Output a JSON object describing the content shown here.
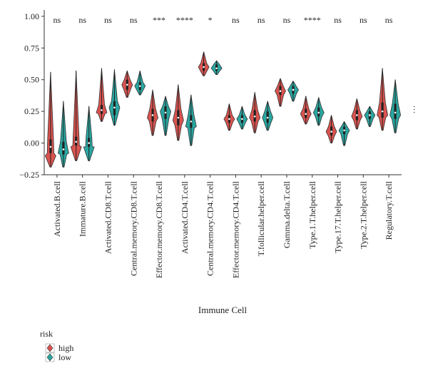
{
  "chart_data": {
    "type": "violin",
    "title": "",
    "xlabel": "Immune Cell",
    "ylabel": "",
    "ylim": [
      -0.25,
      1.05
    ],
    "yticks": [
      -0.25,
      0.0,
      0.25,
      0.5,
      0.75,
      1.0
    ],
    "ytick_labels": [
      "−0.25",
      "0.00",
      "0.25",
      "0.50",
      "0.75",
      "1.00"
    ],
    "grid": false,
    "legend": {
      "title": "risk",
      "placement": "bottom-left",
      "entries": [
        {
          "name": "high",
          "color": "#d9534f"
        },
        {
          "name": "low",
          "color": "#2aa6a0"
        }
      ]
    },
    "categories": [
      "Activated.B.cell",
      "Immature.B.cell",
      "Activated.CD8.T.cell",
      "Central.memory.CD8.T.cell",
      "Effector.memory.CD8.T.cell",
      "Activated.CD4.T.cell",
      "Central.memory.CD4.T.cell",
      "Effector.memory.CD4.T.cell",
      "T.follicular.helper.cell",
      "Gamma.delta.T.cell",
      "Type.1.T.helper.cell",
      "Type.17.T.helper.cell",
      "Type.2.T.helper.cell",
      "Regulatory.T.cell"
    ],
    "significance": [
      "ns",
      "ns",
      "ns",
      "ns",
      "***",
      "****",
      "*",
      "ns",
      "ns",
      "ns",
      "****",
      "ns",
      "ns",
      "ns"
    ],
    "series": [
      {
        "name": "high",
        "color": "#d9534f",
        "min": [
          -0.19,
          -0.14,
          0.17,
          0.36,
          0.06,
          0.02,
          0.53,
          0.1,
          0.08,
          0.29,
          0.15,
          0.0,
          0.11,
          0.1
        ],
        "q1": [
          -0.08,
          -0.02,
          0.23,
          0.42,
          0.17,
          0.14,
          0.57,
          0.16,
          0.17,
          0.38,
          0.2,
          0.06,
          0.18,
          0.2
        ],
        "median": [
          -0.03,
          0.01,
          0.26,
          0.46,
          0.22,
          0.2,
          0.6,
          0.19,
          0.21,
          0.41,
          0.23,
          0.09,
          0.22,
          0.25
        ],
        "q3": [
          0.03,
          0.05,
          0.3,
          0.5,
          0.27,
          0.26,
          0.63,
          0.22,
          0.26,
          0.45,
          0.27,
          0.13,
          0.26,
          0.32
        ],
        "max": [
          0.56,
          0.57,
          0.59,
          0.57,
          0.42,
          0.46,
          0.72,
          0.31,
          0.4,
          0.51,
          0.37,
          0.22,
          0.35,
          0.59
        ],
        "mode": [
          -0.1,
          -0.03,
          0.24,
          0.46,
          0.2,
          0.18,
          0.6,
          0.19,
          0.2,
          0.41,
          0.23,
          0.09,
          0.21,
          0.22
        ]
      },
      {
        "name": "low",
        "color": "#2aa6a0",
        "min": [
          -0.19,
          -0.14,
          0.14,
          0.38,
          0.06,
          -0.02,
          0.54,
          0.11,
          0.1,
          0.33,
          0.14,
          -0.02,
          0.13,
          0.08
        ],
        "q1": [
          -0.09,
          -0.03,
          0.22,
          0.42,
          0.19,
          0.12,
          0.57,
          0.16,
          0.16,
          0.39,
          0.21,
          0.07,
          0.19,
          0.19
        ],
        "median": [
          -0.05,
          0.0,
          0.28,
          0.45,
          0.24,
          0.17,
          0.59,
          0.19,
          0.2,
          0.42,
          0.24,
          0.1,
          0.22,
          0.24
        ],
        "q3": [
          0.01,
          0.04,
          0.33,
          0.48,
          0.29,
          0.22,
          0.62,
          0.22,
          0.25,
          0.45,
          0.28,
          0.13,
          0.25,
          0.31
        ],
        "max": [
          0.33,
          0.29,
          0.58,
          0.57,
          0.37,
          0.38,
          0.65,
          0.29,
          0.33,
          0.49,
          0.36,
          0.17,
          0.29,
          0.5
        ],
        "mode": [
          -0.08,
          -0.03,
          0.28,
          0.45,
          0.25,
          0.13,
          0.59,
          0.19,
          0.2,
          0.42,
          0.24,
          0.1,
          0.22,
          0.22
        ]
      }
    ],
    "side_annotation": "..."
  }
}
